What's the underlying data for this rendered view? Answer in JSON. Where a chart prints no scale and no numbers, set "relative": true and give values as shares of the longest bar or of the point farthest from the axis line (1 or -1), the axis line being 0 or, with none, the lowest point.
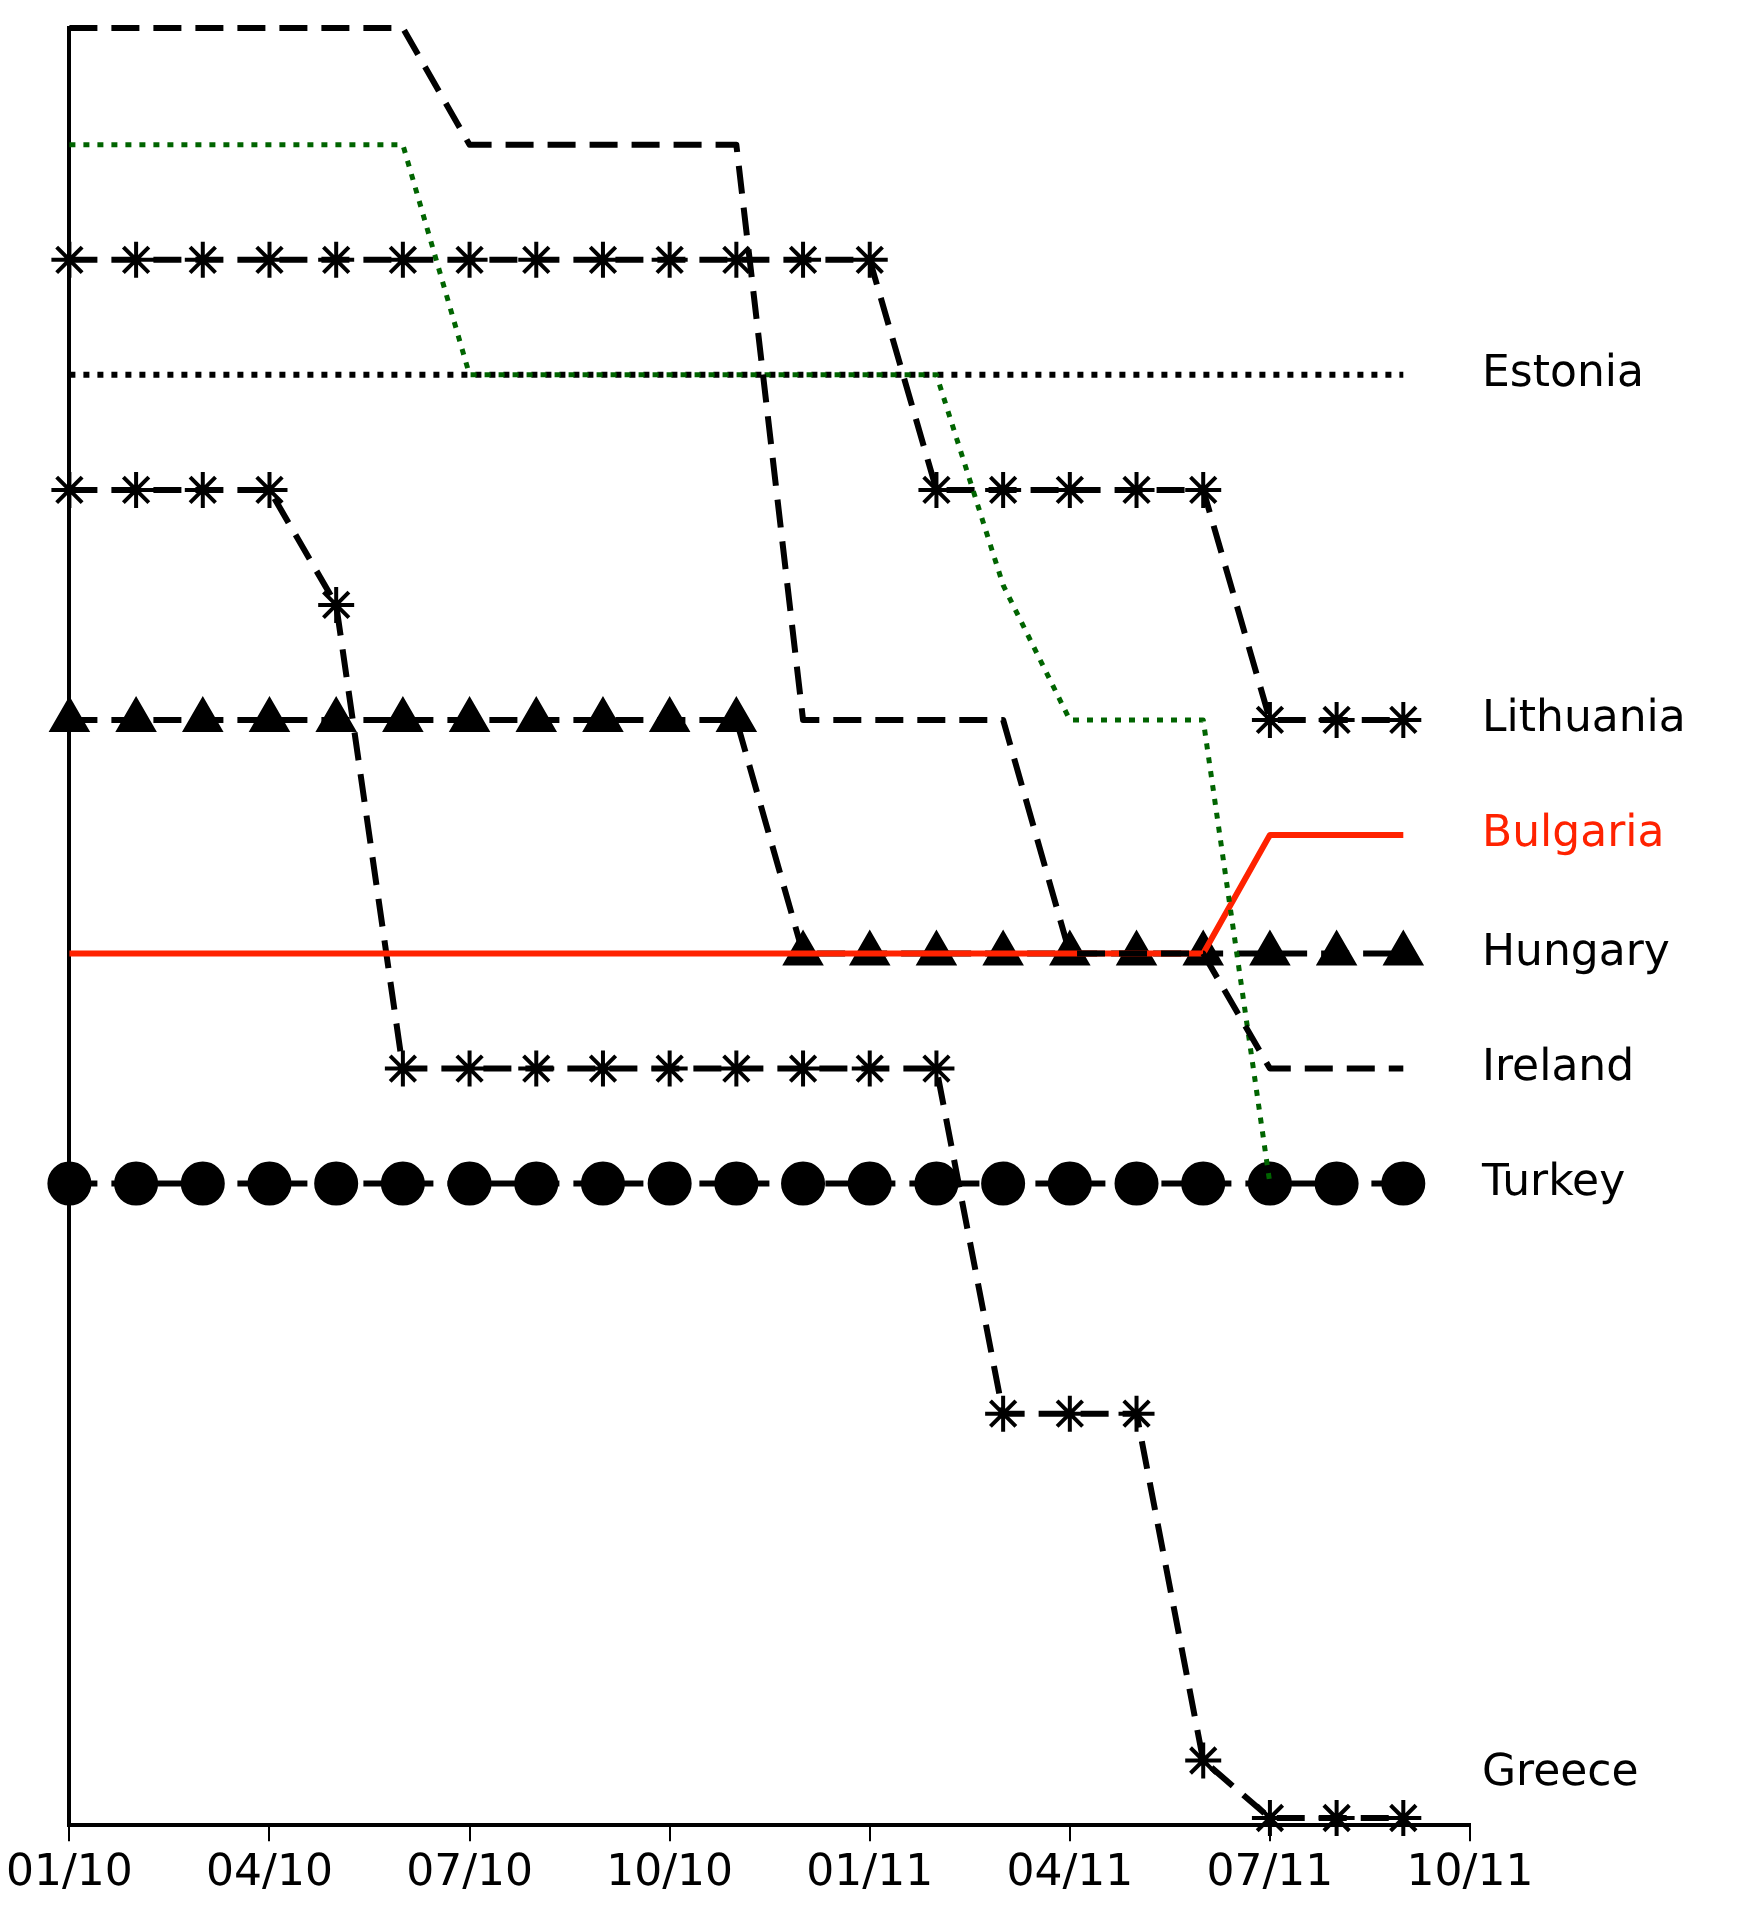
{
  "chart_data": {
    "type": "line",
    "relative": true,
    "legend": "right",
    "grid": false,
    "tick_labels": "x",
    "x": [
      "2010-01",
      "2010-02",
      "2010-03",
      "2010-04",
      "2010-05",
      "2010-06",
      "2010-07",
      "2010-08",
      "2010-09",
      "2010-10",
      "2010-11",
      "2010-12",
      "2011-01",
      "2011-02",
      "2011-03",
      "2011-04",
      "2011-05",
      "2011-06",
      "2011-07",
      "2011-08",
      "2011-09"
    ],
    "xlim": [
      "2010-01",
      "2011-10"
    ],
    "xticks": [
      {
        "value": "2010-01",
        "label": "01/10"
      },
      {
        "value": "2010-04",
        "label": "04/10"
      },
      {
        "value": "2010-07",
        "label": "07/10"
      },
      {
        "value": "2010-10",
        "label": "10/10"
      },
      {
        "value": "2011-01",
        "label": "01/11"
      },
      {
        "value": "2011-04",
        "label": "04/11"
      },
      {
        "value": "2011-07",
        "label": "07/11"
      },
      {
        "value": "2011-10",
        "label": "10/11"
      }
    ],
    "series": [
      {
        "name": "Ireland",
        "color": "#000000",
        "line_style": "dashed",
        "marker": "none",
        "values": [
          1.0,
          1.0,
          1.0,
          1.0,
          1.0,
          1.0,
          0.935,
          0.935,
          0.935,
          0.935,
          0.935,
          0.615,
          0.615,
          0.615,
          0.615,
          0.485,
          0.485,
          0.485,
          0.421,
          0.421,
          0.421
        ]
      },
      {
        "color": "#006400",
        "line_style": "dotted",
        "marker": "none",
        "values": [
          0.935,
          0.935,
          0.935,
          0.935,
          0.935,
          0.935,
          0.807,
          0.807,
          0.807,
          0.807,
          0.807,
          0.807,
          0.807,
          0.807,
          0.69,
          0.615,
          0.615,
          0.615,
          0.357,
          null,
          null
        ]
      },
      {
        "name": "Estonia",
        "color": "#000000",
        "line_style": "dotted",
        "marker": "none",
        "values": [
          0.807,
          0.807,
          0.807,
          0.807,
          0.807,
          0.807,
          0.807,
          0.807,
          0.807,
          0.807,
          0.807,
          0.807,
          0.807,
          0.807,
          0.807,
          0.807,
          0.807,
          0.807,
          0.807,
          0.807,
          0.807
        ]
      },
      {
        "name": "Lithuania",
        "color": "#000000",
        "line_style": "dashed",
        "marker": "cross",
        "values": [
          0.871,
          0.871,
          0.871,
          0.871,
          0.871,
          0.871,
          0.871,
          0.871,
          0.871,
          0.871,
          0.871,
          0.871,
          0.871,
          0.743,
          0.743,
          0.743,
          0.743,
          0.743,
          0.615,
          0.615,
          0.615
        ]
      },
      {
        "name": "Bulgaria",
        "color": "#ff2200",
        "line_style": "solid",
        "marker": "none",
        "values": [
          0.485,
          0.485,
          0.485,
          0.485,
          0.485,
          0.485,
          0.485,
          0.485,
          0.485,
          0.485,
          0.485,
          0.485,
          0.485,
          0.485,
          0.485,
          0.485,
          0.485,
          0.485,
          0.551,
          0.551,
          0.551
        ]
      },
      {
        "name": "Hungary",
        "color": "#000000",
        "line_style": "dashed",
        "marker": "triangle",
        "values": [
          0.615,
          0.615,
          0.615,
          0.615,
          0.615,
          0.615,
          0.615,
          0.615,
          0.615,
          0.615,
          0.615,
          0.485,
          0.485,
          0.485,
          0.485,
          0.485,
          0.485,
          0.485,
          0.485,
          0.485,
          0.485
        ]
      },
      {
        "name": "Turkey",
        "color": "#000000",
        "line_style": "dashed",
        "marker": "circle",
        "values": [
          0.357,
          0.357,
          0.357,
          0.357,
          0.357,
          0.357,
          0.357,
          0.357,
          0.357,
          0.357,
          0.357,
          0.357,
          0.357,
          0.357,
          0.357,
          0.357,
          0.357,
          0.357,
          0.357,
          0.357,
          0.357
        ]
      },
      {
        "name": "Greece",
        "color": "#000000",
        "line_style": "dashed",
        "marker": "cross",
        "values": [
          0.743,
          0.743,
          0.743,
          0.743,
          0.679,
          0.421,
          0.421,
          0.421,
          0.421,
          0.421,
          0.421,
          0.421,
          0.421,
          0.421,
          0.229,
          0.229,
          0.229,
          0.036,
          0.004,
          0.004,
          0.004
        ]
      }
    ]
  }
}
